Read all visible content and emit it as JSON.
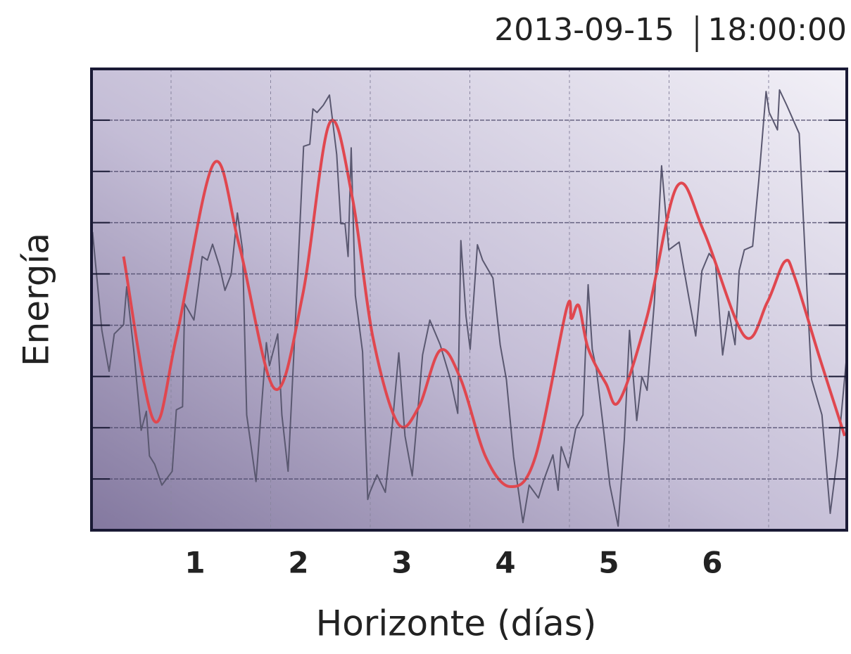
{
  "chart_data": {
    "type": "line",
    "date": "2013-09-15",
    "time": "18:00:00",
    "ylabel": "Energía",
    "xlabel": "Horizonte (días)",
    "xlim": [
      0,
      7.3
    ],
    "xticks": [
      1,
      2,
      3,
      4,
      5,
      6
    ],
    "ylim": [
      0,
      9
    ],
    "yticks": [
      1,
      2,
      3,
      4,
      5,
      6,
      7,
      8
    ],
    "grid": true,
    "series": [
      {
        "color": "#5a5870",
        "smooth": false,
        "x": [
          0.01,
          0.1,
          0.17,
          0.22,
          0.31,
          0.34,
          0.41,
          0.48,
          0.53,
          0.56,
          0.61,
          0.68,
          0.78,
          0.82,
          0.88,
          0.9,
          0.99,
          1.07,
          1.12,
          1.17,
          1.24,
          1.29,
          1.35,
          1.41,
          1.46,
          1.5,
          1.59,
          1.65,
          1.69,
          1.72,
          1.8,
          1.84,
          1.9,
          1.97,
          2.05,
          2.11,
          2.14,
          2.18,
          2.24,
          2.3,
          2.37,
          2.41,
          2.45,
          2.48,
          2.51,
          2.55,
          2.62,
          2.67,
          2.69,
          2.76,
          2.84,
          2.91,
          2.97,
          3.03,
          3.1,
          3.2,
          3.27,
          3.37,
          3.47,
          3.54,
          3.57,
          3.62,
          3.66,
          3.73,
          3.78,
          3.88,
          3.95,
          4.01,
          4.08,
          4.17,
          4.23,
          4.32,
          4.37,
          4.46,
          4.51,
          4.54,
          4.61,
          4.68,
          4.75,
          4.8,
          4.84,
          4.88,
          4.95,
          5.01,
          5.09,
          5.15,
          5.2,
          5.27,
          5.32,
          5.37,
          5.44,
          5.51,
          5.58,
          5.68,
          5.77,
          5.84,
          5.9,
          5.97,
          6.03,
          6.1,
          6.16,
          6.22,
          6.26,
          6.31,
          6.39,
          6.45,
          6.52,
          6.55,
          6.63,
          6.65,
          6.72,
          6.84,
          6.9,
          6.96,
          7.06,
          7.14,
          7.21,
          7.3
        ],
        "values": [
          5.82,
          3.9,
          3.1,
          3.83,
          4.01,
          4.75,
          3.48,
          1.95,
          2.32,
          1.45,
          1.29,
          0.88,
          1.15,
          2.35,
          2.41,
          4.42,
          4.1,
          5.34,
          5.27,
          5.58,
          5.13,
          4.68,
          4.99,
          6.19,
          5.47,
          2.25,
          0.95,
          2.59,
          3.66,
          3.21,
          3.83,
          2.25,
          1.15,
          4.03,
          7.49,
          7.53,
          8.22,
          8.15,
          8.29,
          8.49,
          7.33,
          5.98,
          5.98,
          5.34,
          7.46,
          4.58,
          3.48,
          0.6,
          0.74,
          1.08,
          0.74,
          2.11,
          3.46,
          1.84,
          1.06,
          3.42,
          4.1,
          3.62,
          2.94,
          2.28,
          5.65,
          4.17,
          3.53,
          5.57,
          5.27,
          4.92,
          3.62,
          2.94,
          1.43,
          0.15,
          0.88,
          0.63,
          0.97,
          1.47,
          0.78,
          1.63,
          1.22,
          1.98,
          2.25,
          4.79,
          3.53,
          3.14,
          1.95,
          0.88,
          0.08,
          1.77,
          3.9,
          2.14,
          3.0,
          2.73,
          4.44,
          7.11,
          5.47,
          5.62,
          4.58,
          3.79,
          5.06,
          5.4,
          5.24,
          3.42,
          4.27,
          3.62,
          5.06,
          5.47,
          5.54,
          6.84,
          8.56,
          8.15,
          7.81,
          8.59,
          8.29,
          7.74,
          5.27,
          2.94,
          2.25,
          0.33,
          1.45,
          3.42
        ]
      },
      {
        "color": "#e0474f",
        "smooth": true,
        "x": [
          0.31,
          0.6,
          0.82,
          1.18,
          1.43,
          1.77,
          2.04,
          2.3,
          2.52,
          2.72,
          2.96,
          3.16,
          3.37,
          3.57,
          3.81,
          4.05,
          4.29,
          4.59,
          4.64,
          4.71,
          4.8,
          4.97,
          5.1,
          5.37,
          5.66,
          5.92,
          6.31,
          6.53,
          6.7,
          6.8,
          7.04,
          7.28
        ],
        "values": [
          5.34,
          2.15,
          3.76,
          7.15,
          5.54,
          2.76,
          4.58,
          7.94,
          6.5,
          3.76,
          2.09,
          2.39,
          3.51,
          2.94,
          1.43,
          0.85,
          1.43,
          4.31,
          4.13,
          4.38,
          3.55,
          2.87,
          2.52,
          4.17,
          6.71,
          5.82,
          3.79,
          4.44,
          5.24,
          4.92,
          3.35,
          1.84
        ]
      }
    ]
  }
}
